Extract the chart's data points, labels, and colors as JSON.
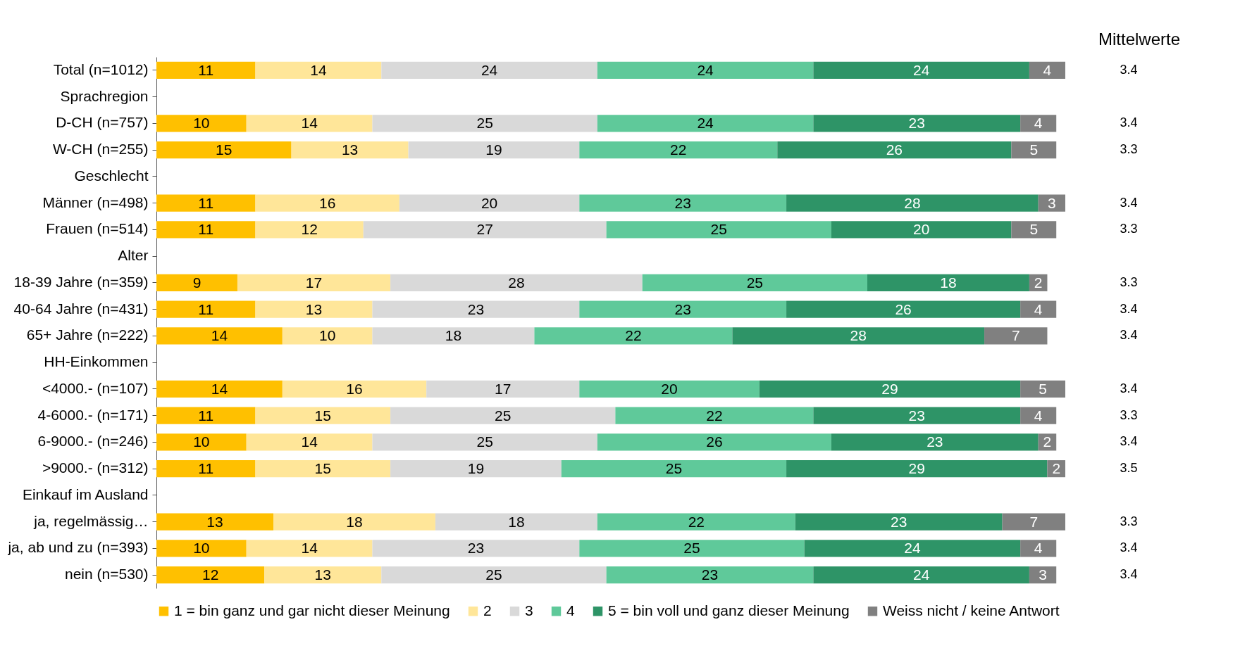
{
  "chart_data": {
    "type": "bar",
    "orientation": "horizontal",
    "stacked": true,
    "data_labels": true,
    "legend": "bottom",
    "categories": [
      "Total (n=1012)",
      "Sprachregion",
      "D-CH (n=757)",
      "W-CH (n=255)",
      "Geschlecht",
      "Männer (n=498)",
      "Frauen (n=514)",
      "Alter",
      "18-39 Jahre (n=359)",
      "40-64 Jahre (n=431)",
      "65+ Jahre (n=222)",
      "HH-Einkommen",
      "<4000.- (n=107)",
      "4-6000.- (n=171)",
      "6-9000.- (n=246)",
      ">9000.- (n=312)",
      "Einkauf im Ausland",
      "ja, regelmässig…",
      "ja, ab und zu (n=393)",
      "nein (n=530)"
    ],
    "series": [
      {
        "name": "1 = bin ganz und gar nicht dieser Meinung",
        "color": "#ffc000",
        "values": [
          11,
          null,
          10,
          15,
          null,
          11,
          11,
          null,
          9,
          11,
          14,
          null,
          14,
          11,
          10,
          11,
          null,
          13,
          10,
          12
        ]
      },
      {
        "name": "2",
        "color": "#ffe699",
        "values": [
          14,
          null,
          14,
          13,
          null,
          16,
          12,
          null,
          17,
          13,
          10,
          null,
          16,
          15,
          14,
          15,
          null,
          18,
          14,
          13
        ]
      },
      {
        "name": "3",
        "color": "#d9d9d9",
        "values": [
          24,
          null,
          25,
          19,
          null,
          20,
          27,
          null,
          28,
          23,
          18,
          null,
          17,
          25,
          25,
          19,
          null,
          18,
          23,
          25
        ]
      },
      {
        "name": "4",
        "color": "#5fc99a",
        "values": [
          24,
          null,
          24,
          22,
          null,
          23,
          25,
          null,
          25,
          23,
          22,
          null,
          20,
          22,
          26,
          25,
          null,
          22,
          25,
          23
        ]
      },
      {
        "name": "5 = bin voll und ganz dieser Meinung",
        "color": "#2e9467",
        "values": [
          24,
          null,
          23,
          26,
          null,
          28,
          20,
          null,
          18,
          26,
          28,
          null,
          29,
          23,
          23,
          29,
          null,
          23,
          24,
          24
        ]
      },
      {
        "name": "Weiss nicht / keine Antwort",
        "color": "#808080",
        "values": [
          4,
          null,
          4,
          5,
          null,
          3,
          5,
          null,
          2,
          4,
          7,
          null,
          5,
          4,
          2,
          2,
          null,
          7,
          4,
          3
        ]
      }
    ],
    "annotations": [
      "Mittelwerte",
      "3.4",
      "3.4",
      "3.3",
      "3.4",
      "3.3",
      "3.3",
      "3.4",
      "3.4",
      "3.4",
      "3.3",
      "3.4",
      "3.5",
      "3.3",
      "3.4",
      "3.4"
    ]
  }
}
